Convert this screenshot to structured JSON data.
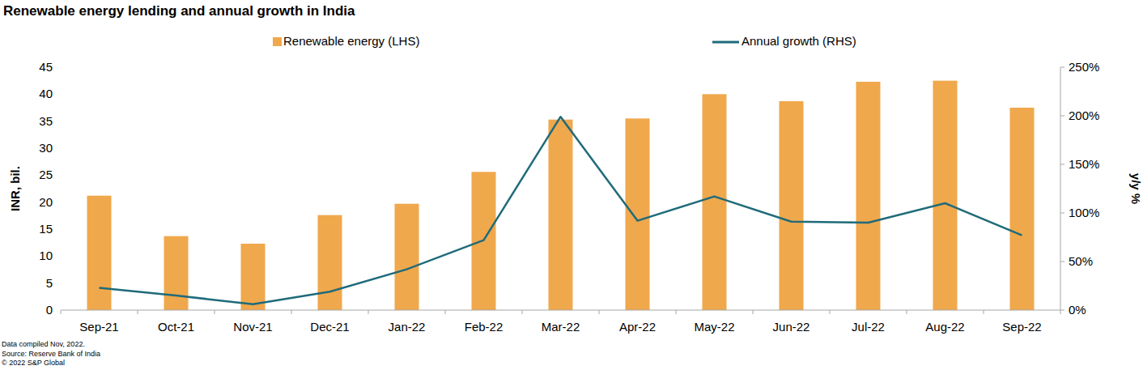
{
  "chart_data": {
    "type": "bar",
    "title": "Renewable energy lending and annual growth in India",
    "ylabel": "INR, bil.",
    "y2label": "y/y %",
    "annotations": [
      "Data compiled Nov, 2022.",
      "Source: Reserve Bank of India",
      "© 2022 S&P Global"
    ],
    "categories": [
      "Sep-21",
      "Oct-21",
      "Nov-21",
      "Dec-21",
      "Jan-22",
      "Feb-22",
      "Mar-22",
      "Apr-22",
      "May-22",
      "Jun-22",
      "Jul-22",
      "Aug-22",
      "Sep-22"
    ],
    "series": [
      {
        "name": "Renewable energy (LHS)",
        "type": "bar",
        "color": "#F0A84C",
        "values": [
          21.2,
          13.7,
          12.3,
          17.6,
          19.7,
          25.6,
          35.3,
          35.5,
          40.0,
          38.7,
          42.3,
          42.5,
          37.5
        ]
      },
      {
        "name": "Annual growth (RHS)",
        "type": "line",
        "axis": "y2",
        "color": "#1F6B7A",
        "values": [
          23,
          15,
          6,
          19,
          42,
          72,
          199,
          92,
          117,
          91,
          90,
          110,
          77
        ]
      }
    ],
    "ylim": [
      0,
      45
    ],
    "yticks": [
      0,
      5,
      10,
      15,
      20,
      25,
      30,
      35,
      40,
      45
    ],
    "y2lim": [
      0,
      250
    ],
    "y2ticks": [
      {
        "value": 0,
        "label": "0%"
      },
      {
        "value": 50,
        "label": "50%"
      },
      {
        "value": 100,
        "label": "100%"
      },
      {
        "value": 150,
        "label": "150%"
      },
      {
        "value": 200,
        "label": "200%"
      },
      {
        "value": 250,
        "label": "250%"
      }
    ],
    "grid": false,
    "legend": "top",
    "data_labels": false
  }
}
